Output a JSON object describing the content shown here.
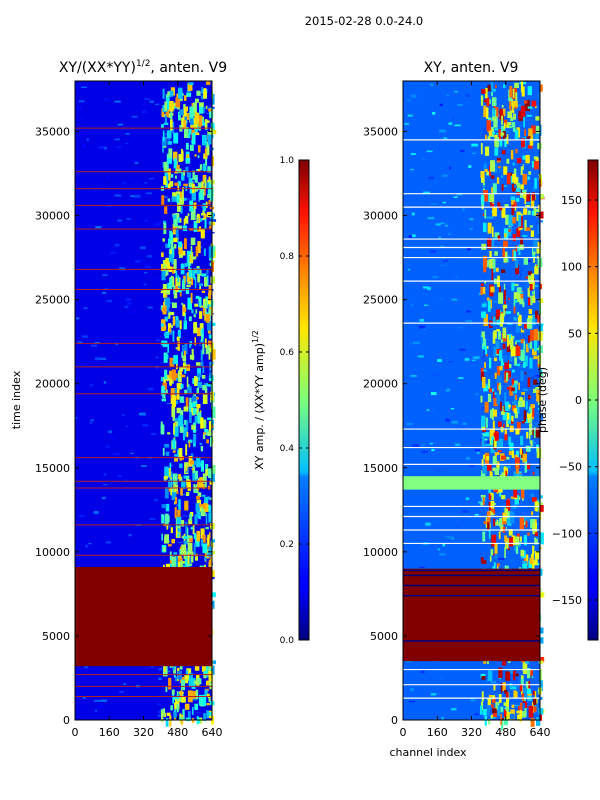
{
  "figure": {
    "suptitle": "2015-02-28 0.0-24.0"
  },
  "chart_data": [
    {
      "type": "heatmap",
      "title": "XY/(XX*YY)^(1/2), anten. V9",
      "title_main": "XY/(XX*YY)",
      "title_exp": "1/2",
      "title_suffix": ", anten. V9",
      "xlabel": "",
      "ylabel": "time index",
      "xlim": [
        0,
        640
      ],
      "ylim": [
        0,
        38000
      ],
      "xticks": [
        0,
        160,
        320,
        480,
        640
      ],
      "yticks": [
        0,
        5000,
        10000,
        15000,
        20000,
        25000,
        30000,
        35000
      ],
      "xtick_labels": [
        "0",
        "160",
        "320",
        "480",
        "640"
      ],
      "ytick_labels": [
        "0",
        "5000",
        "10000",
        "15000",
        "20000",
        "25000",
        "30000",
        "35000"
      ],
      "colormap": "jet",
      "colorbar": {
        "label": "XY amp. / (XX*YY amp)^(1/2)",
        "label_main": "XY amp. / (XX*YY amp)",
        "label_exp": "1/2",
        "vmin": 0.0,
        "vmax": 1.0,
        "ticks": [
          0.0,
          0.2,
          0.4,
          0.6,
          0.8,
          1.0
        ],
        "tick_labels": [
          "0.0",
          "0.2",
          "0.4",
          "0.6",
          "0.8",
          "1.0"
        ]
      },
      "features": {
        "saturated_block_time": [
          3200,
          9100
        ],
        "saturated_value": 1.0,
        "background_value": 0.05,
        "active_channel_range": [
          400,
          640
        ],
        "red_line_times": [
          1400,
          2000,
          2700,
          9800,
          11600,
          13800,
          14200,
          15600,
          19400,
          21000,
          22400,
          25600,
          26800,
          29200,
          30600,
          31600,
          32600,
          35200
        ]
      }
    },
    {
      "type": "heatmap",
      "title": "XY, anten. V9",
      "xlabel": "channel index",
      "ylabel": "",
      "xlim": [
        0,
        640
      ],
      "ylim": [
        0,
        38000
      ],
      "xticks": [
        0,
        160,
        320,
        480,
        640
      ],
      "yticks": [
        0,
        5000,
        10000,
        15000,
        20000,
        25000,
        30000,
        35000
      ],
      "xtick_labels": [
        "0",
        "160",
        "320",
        "480",
        "640"
      ],
      "ytick_labels": [
        "0",
        "5000",
        "10000",
        "15000",
        "20000",
        "25000",
        "30000",
        "35000"
      ],
      "colormap": "jet",
      "colorbar": {
        "label": "phase (deg)",
        "vmin": -180,
        "vmax": 180,
        "ticks": [
          -150,
          -100,
          -50,
          0,
          50,
          100,
          150
        ],
        "tick_labels": [
          "−150",
          "−100",
          "−50",
          "0",
          "50",
          "100",
          "150"
        ]
      },
      "features": {
        "saturated_block_time": [
          3500,
          9000
        ],
        "saturated_value": 180,
        "green_band_time": [
          13700,
          14500
        ],
        "green_band_value": 0,
        "active_channel_range": [
          360,
          640
        ],
        "white_line_times": [
          1300,
          2100,
          3000,
          10500,
          11300,
          12100,
          12700,
          15200,
          16200,
          17300,
          23600,
          26100,
          27500,
          28100,
          28600,
          30500,
          31300,
          34500
        ],
        "blue_line_times": [
          4700,
          7400,
          8000,
          8600,
          8900
        ]
      }
    }
  ]
}
